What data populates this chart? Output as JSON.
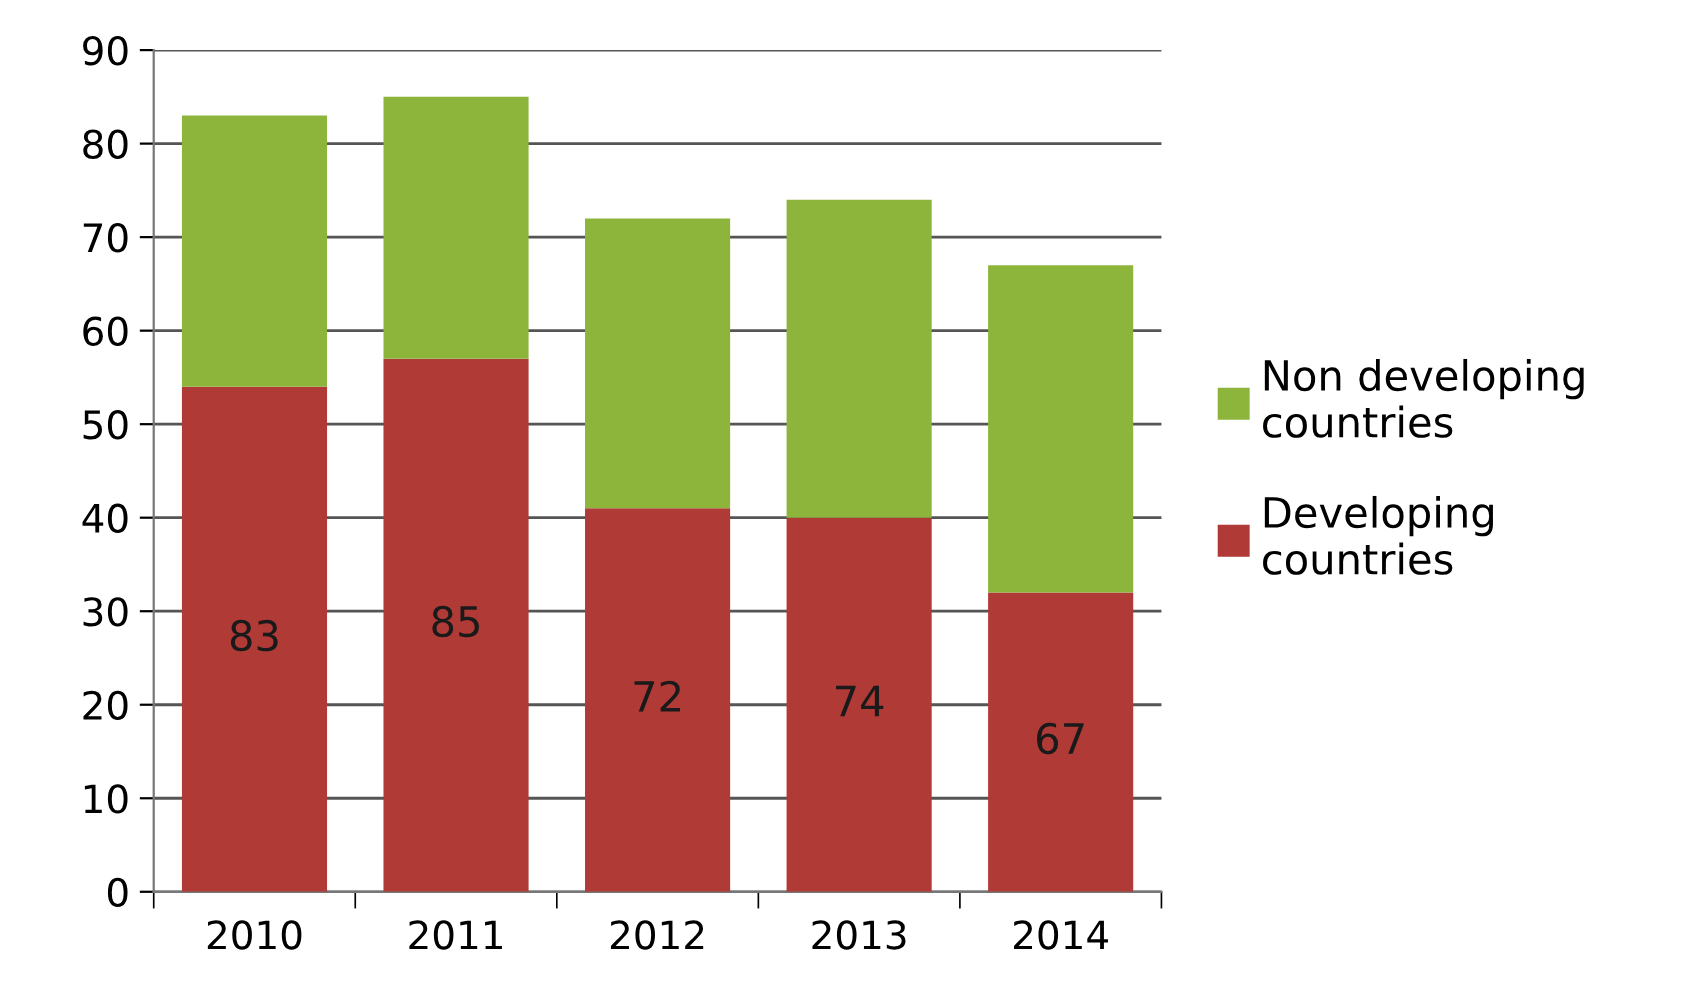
{
  "chart_data": {
    "type": "bar",
    "stacked": true,
    "categories": [
      "2010",
      "2011",
      "2012",
      "2013",
      "2014"
    ],
    "series": [
      {
        "name": "Developing countries",
        "color": "#b03a36",
        "values": [
          54,
          57,
          41,
          40,
          32
        ]
      },
      {
        "name": "Non developing countries",
        "color": "#8db53c",
        "values": [
          29,
          28,
          31,
          34,
          35
        ]
      }
    ],
    "totals": [
      "83",
      "85",
      "72",
      "74",
      "67"
    ],
    "ylim": [
      0,
      90
    ],
    "yticks": [
      0,
      10,
      20,
      30,
      40,
      50,
      60,
      70,
      80,
      90
    ],
    "grid": "y",
    "legend": "right"
  }
}
